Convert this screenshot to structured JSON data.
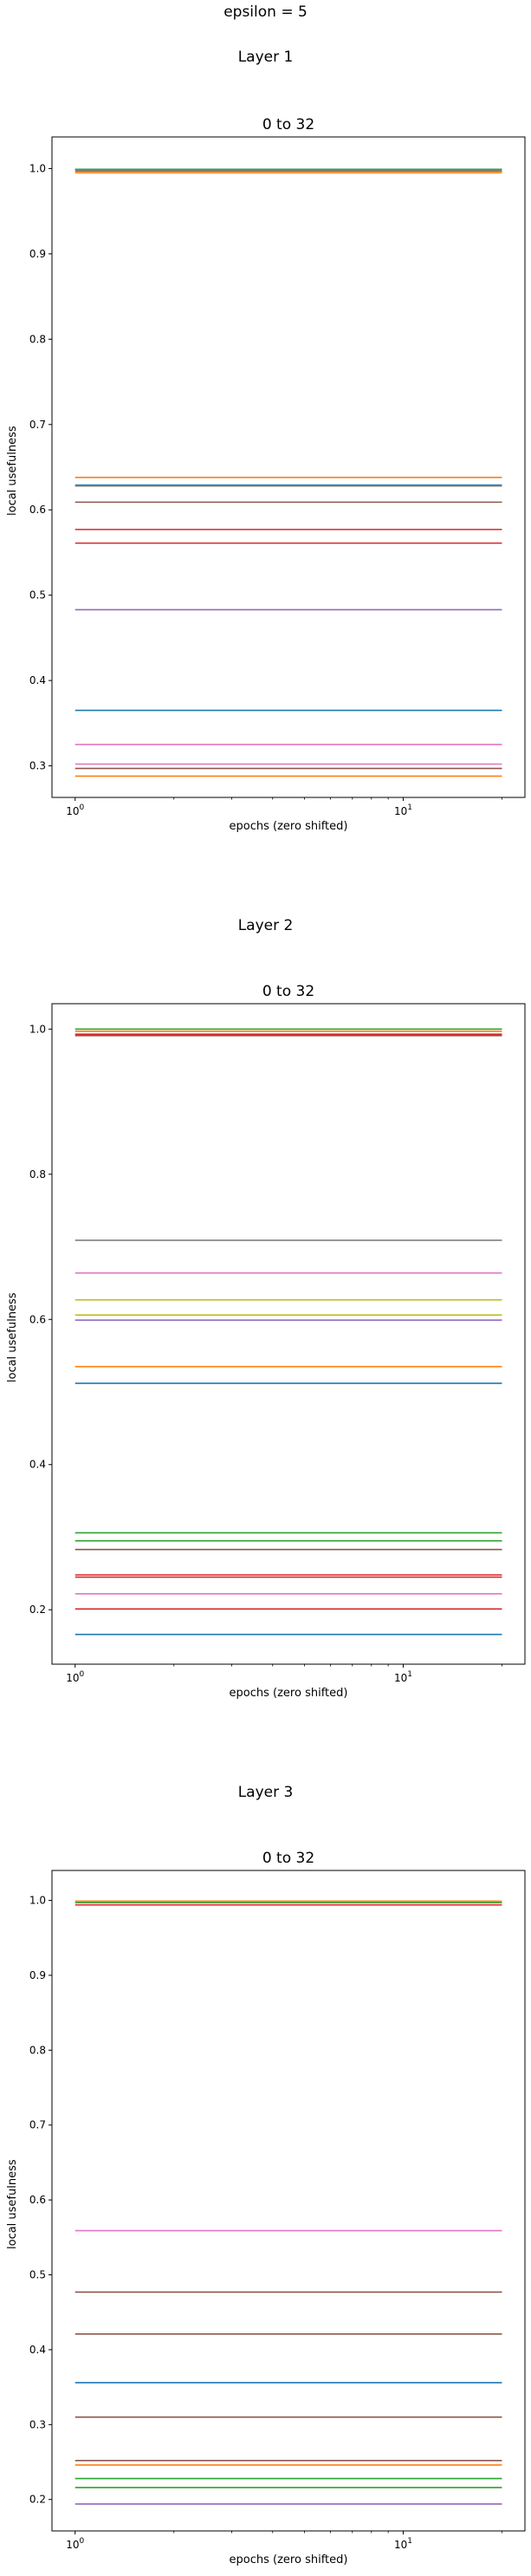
{
  "figure": {
    "suptitle": "epsilon = 5",
    "panels": [
      {
        "layer_title": "Layer 1",
        "axes_title": "0 to 32",
        "xlabel": "epochs (zero shifted)",
        "ylabel": "local usefulness"
      },
      {
        "layer_title": "Layer 2",
        "axes_title": "0 to 32",
        "xlabel": "epochs (zero shifted)",
        "ylabel": "local usefulness"
      },
      {
        "layer_title": "Layer 3",
        "axes_title": "0 to 32",
        "xlabel": "epochs (zero shifted)",
        "ylabel": "local usefulness"
      }
    ]
  },
  "chart_data": [
    {
      "type": "line",
      "title": "0 to 32",
      "xlabel": "epochs (zero shifted)",
      "ylabel": "local usefulness",
      "xscale": "log",
      "xlim": [
        0.85,
        23.5
      ],
      "ylim": [
        0.263,
        1.037
      ],
      "xticks": [
        {
          "value": 1,
          "base": "10",
          "exp": "0"
        },
        {
          "value": 10,
          "base": "10",
          "exp": "1"
        }
      ],
      "yticks": [
        {
          "value": 0.3,
          "label": "0.3"
        },
        {
          "value": 0.4,
          "label": "0.4"
        },
        {
          "value": 0.5,
          "label": "0.5"
        },
        {
          "value": 0.6,
          "label": "0.6"
        },
        {
          "value": 0.7,
          "label": "0.7"
        },
        {
          "value": 0.8,
          "label": "0.8"
        },
        {
          "value": 0.9,
          "label": "0.9"
        },
        {
          "value": 1.0,
          "label": "1.0"
        }
      ],
      "grid": false,
      "x_range": [
        1,
        20
      ],
      "series": [
        {
          "color": "#1f77b4",
          "value": 0.999
        },
        {
          "color": "#ff7f0e",
          "value": 0.995
        },
        {
          "color": "#2ca02c",
          "value": 0.999
        },
        {
          "color": "#8c564b",
          "value": 0.997
        },
        {
          "color": "#ff7f0e",
          "value": 0.638
        },
        {
          "color": "#1f77b4",
          "value": 0.629
        },
        {
          "color": "#7f7f7f",
          "value": 0.628
        },
        {
          "color": "#8c564b",
          "value": 0.609
        },
        {
          "color": "#d62728",
          "value": 0.577
        },
        {
          "color": "#d62728",
          "value": 0.561
        },
        {
          "color": "#9467bd",
          "value": 0.483
        },
        {
          "color": "#1f77b4",
          "value": 0.365
        },
        {
          "color": "#e377c2",
          "value": 0.325
        },
        {
          "color": "#e377c2",
          "value": 0.302
        },
        {
          "color": "#8c564b",
          "value": 0.297
        },
        {
          "color": "#ff7f0e",
          "value": 0.288
        }
      ]
    },
    {
      "type": "line",
      "title": "0 to 32",
      "xlabel": "epochs (zero shifted)",
      "ylabel": "local usefulness",
      "xscale": "log",
      "xlim": [
        0.85,
        23.5
      ],
      "ylim": [
        0.125,
        1.035
      ],
      "xticks": [
        {
          "value": 1,
          "base": "10",
          "exp": "0"
        },
        {
          "value": 10,
          "base": "10",
          "exp": "1"
        }
      ],
      "yticks": [
        {
          "value": 0.2,
          "label": "0.2"
        },
        {
          "value": 0.4,
          "label": "0.4"
        },
        {
          "value": 0.6,
          "label": "0.6"
        },
        {
          "value": 0.8,
          "label": "0.8"
        },
        {
          "value": 1.0,
          "label": "1.0"
        }
      ],
      "grid": false,
      "x_range": [
        1,
        20
      ],
      "series": [
        {
          "color": "#2ca02c",
          "value": 1.0
        },
        {
          "color": "#ff7f0e",
          "value": 0.997
        },
        {
          "color": "#d62728",
          "value": 0.993
        },
        {
          "color": "#8c564b",
          "value": 0.991
        },
        {
          "color": "#7f7f7f",
          "value": 0.709
        },
        {
          "color": "#e377c2",
          "value": 0.664
        },
        {
          "color": "#bcbd22",
          "value": 0.627
        },
        {
          "color": "#bcbd22",
          "value": 0.606
        },
        {
          "color": "#9467bd",
          "value": 0.599
        },
        {
          "color": "#ff7f0e",
          "value": 0.535
        },
        {
          "color": "#1f77b4",
          "value": 0.512
        },
        {
          "color": "#2ca02c",
          "value": 0.306
        },
        {
          "color": "#2ca02c",
          "value": 0.295
        },
        {
          "color": "#8c564b",
          "value": 0.283
        },
        {
          "color": "#d62728",
          "value": 0.248
        },
        {
          "color": "#d62728",
          "value": 0.245
        },
        {
          "color": "#e377c2",
          "value": 0.222
        },
        {
          "color": "#d62728",
          "value": 0.201
        },
        {
          "color": "#1f77b4",
          "value": 0.166
        }
      ]
    },
    {
      "type": "line",
      "title": "0 to 32",
      "xlabel": "epochs (zero shifted)",
      "ylabel": "local usefulness",
      "xscale": "log",
      "xlim": [
        0.85,
        23.5
      ],
      "ylim": [
        0.158,
        1.04
      ],
      "xticks": [
        {
          "value": 1,
          "base": "10",
          "exp": "0"
        },
        {
          "value": 10,
          "base": "10",
          "exp": "1"
        }
      ],
      "yticks": [
        {
          "value": 0.2,
          "label": "0.2"
        },
        {
          "value": 0.3,
          "label": "0.3"
        },
        {
          "value": 0.4,
          "label": "0.4"
        },
        {
          "value": 0.5,
          "label": "0.5"
        },
        {
          "value": 0.6,
          "label": "0.6"
        },
        {
          "value": 0.7,
          "label": "0.7"
        },
        {
          "value": 0.8,
          "label": "0.8"
        },
        {
          "value": 0.9,
          "label": "0.9"
        },
        {
          "value": 1.0,
          "label": "1.0"
        }
      ],
      "grid": false,
      "x_range": [
        1,
        20
      ],
      "series": [
        {
          "color": "#ff7f0e",
          "value": 0.999
        },
        {
          "color": "#2ca02c",
          "value": 0.997
        },
        {
          "color": "#d62728",
          "value": 0.994
        },
        {
          "color": "#e377c2",
          "value": 0.559
        },
        {
          "color": "#8c564b",
          "value": 0.477
        },
        {
          "color": "#8c564b",
          "value": 0.421
        },
        {
          "color": "#1f77b4",
          "value": 0.356
        },
        {
          "color": "#8c564b",
          "value": 0.31
        },
        {
          "color": "#8c564b",
          "value": 0.252
        },
        {
          "color": "#ff7f0e",
          "value": 0.246
        },
        {
          "color": "#2ca02c",
          "value": 0.228
        },
        {
          "color": "#2ca02c",
          "value": 0.216
        },
        {
          "color": "#9467bd",
          "value": 0.194
        }
      ]
    }
  ]
}
